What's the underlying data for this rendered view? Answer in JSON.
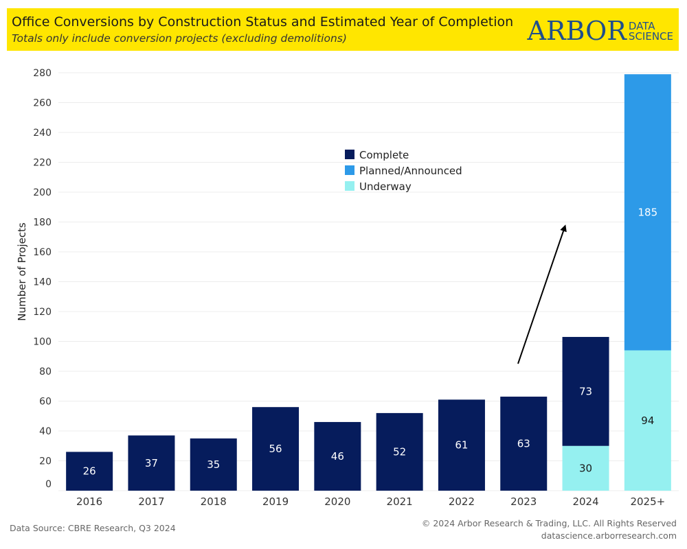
{
  "header": {
    "title": "Office Conversions by Construction Status and Estimated Year of Completion",
    "subtitle": "Totals only include conversion projects (excluding demolitions)",
    "logo_main": "ARBOR",
    "logo_sub_1": "DATA",
    "logo_sub_2": "SCIENCE",
    "background": "#ffe600"
  },
  "chart_data": {
    "type": "bar",
    "stacked": true,
    "categories": [
      "2016",
      "2017",
      "2018",
      "2019",
      "2020",
      "2021",
      "2022",
      "2023",
      "2024",
      "2025+"
    ],
    "series": [
      {
        "name": "Complete",
        "color": "#061c5c",
        "values": [
          26,
          37,
          35,
          56,
          46,
          52,
          61,
          63,
          73,
          0
        ]
      },
      {
        "name": "Planned/Announced",
        "color": "#2d9ae8",
        "values": [
          0,
          0,
          0,
          0,
          0,
          0,
          0,
          0,
          0,
          185
        ]
      },
      {
        "name": "Underway",
        "color": "#95f0f0",
        "values": [
          0,
          0,
          0,
          0,
          0,
          0,
          0,
          0,
          30,
          94
        ]
      }
    ],
    "stack_order": [
      "Underway",
      "Complete",
      "Planned/Announced"
    ],
    "ylabel": "Number of Projects",
    "ylim": [
      0,
      280
    ],
    "yticks": [
      0,
      20,
      40,
      60,
      80,
      100,
      120,
      140,
      160,
      180,
      200,
      220,
      240,
      260,
      280
    ],
    "grid": true,
    "legend_position": "top-center",
    "annotation": "upward arrow from 2023 toward 2024"
  },
  "footer": {
    "source": "Data Source: CBRE Research, Q3 2024",
    "copyright": "© 2024 Arbor Research & Trading, LLC. All Rights Reserved",
    "website": "datascience.arborresearch.com"
  }
}
